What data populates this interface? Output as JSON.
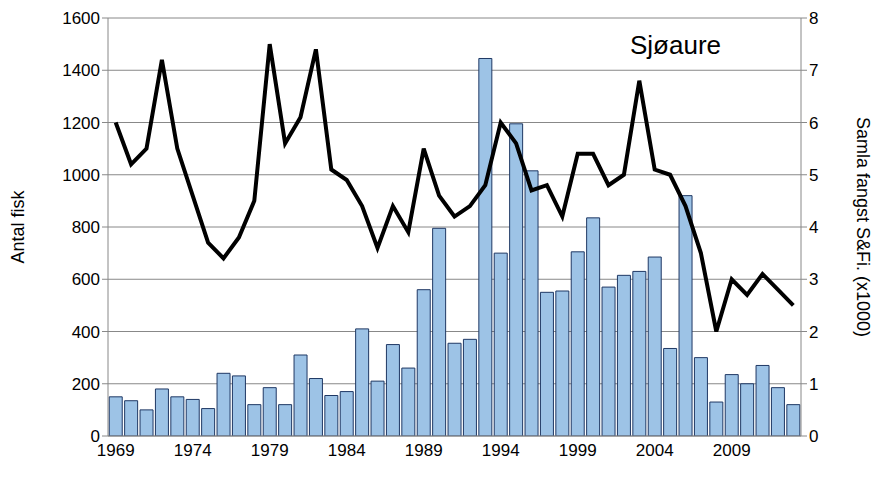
{
  "chart_data": {
    "type": "bar_line",
    "title": "Sjøaure",
    "ylabel": "Antal fisk",
    "y2label": "Samla fangst S&Fi. (x1000)",
    "categories": [
      "1969",
      null,
      null,
      null,
      null,
      "1974",
      null,
      null,
      null,
      null,
      "1979",
      null,
      null,
      null,
      null,
      "1984",
      null,
      null,
      null,
      null,
      "1989",
      null,
      null,
      null,
      null,
      "1994",
      null,
      null,
      null,
      null,
      "1999",
      null,
      null,
      null,
      null,
      "2004",
      null,
      null,
      null,
      null,
      "2009",
      null,
      null,
      null,
      null
    ],
    "series": [
      {
        "type": "bar",
        "color": "#9dc3e6",
        "values": [
          150,
          135,
          100,
          180,
          150,
          140,
          105,
          240,
          230,
          120,
          185,
          120,
          310,
          220,
          155,
          170,
          410,
          210,
          350,
          260,
          560,
          795,
          355,
          370,
          1445,
          700,
          1195,
          1015,
          550,
          555,
          705,
          835,
          570,
          615,
          630,
          685,
          335,
          920,
          300,
          130,
          235,
          200,
          270,
          185,
          120
        ]
      },
      {
        "type": "line",
        "axis": "y2",
        "color": "#000000",
        "values": [
          6.0,
          5.2,
          5.5,
          7.2,
          5.5,
          4.6,
          3.7,
          3.4,
          3.8,
          4.5,
          7.5,
          5.6,
          6.1,
          7.4,
          5.1,
          4.9,
          4.4,
          3.6,
          4.4,
          3.9,
          5.5,
          4.6,
          4.2,
          4.4,
          4.8,
          6.0,
          5.6,
          4.7,
          4.8,
          4.2,
          5.4,
          5.4,
          4.8,
          5.0,
          6.8,
          5.1,
          5.0,
          4.4,
          3.5,
          2.0,
          3.0,
          2.7,
          3.1,
          2.8,
          2.5
        ]
      }
    ],
    "ylim": [
      0,
      1600
    ],
    "yticks": [
      0,
      200,
      400,
      600,
      800,
      1000,
      1200,
      1400,
      1600
    ],
    "y2lim": [
      0,
      8
    ],
    "y2ticks": [
      0,
      1,
      2,
      3,
      4,
      5,
      6,
      7,
      8
    ],
    "grid": true
  }
}
